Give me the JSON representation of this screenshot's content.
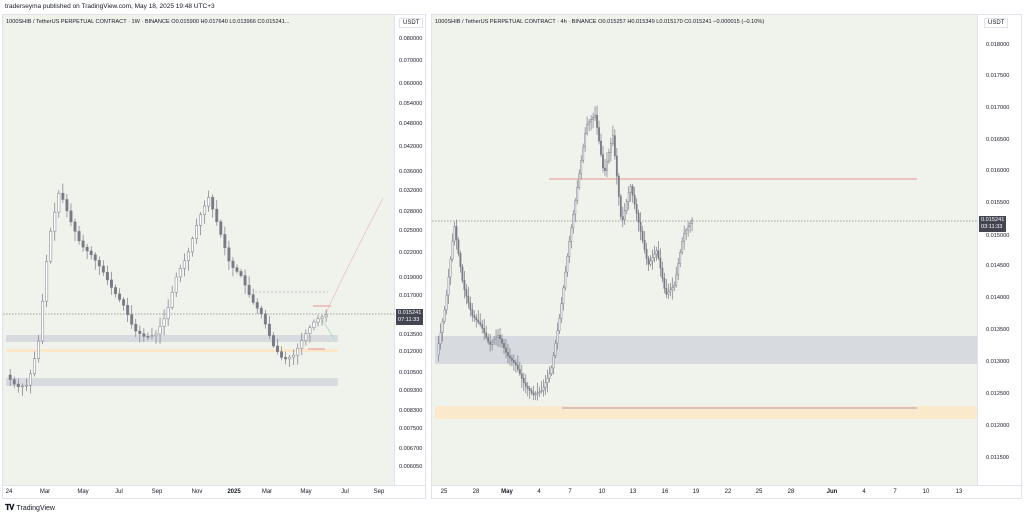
{
  "header": {
    "text": "traderseyma published on TradingView.com, May 18, 2025 19:48 UTC+3"
  },
  "left_chart": {
    "legend": "1000SHIB / TetherUS PERPETUAL CONTRACT · 1W · BINANCE   O0.015900  H0.017640  L0.013966  C0.015241...",
    "unit": "USDT",
    "y_ticks": [
      "0.080000",
      "0.070000",
      "0.060000",
      "0.054000",
      "0.048000",
      "0.042000",
      "0.036000",
      "0.032000",
      "0.028000",
      "0.025000",
      "0.022000",
      "0.019000",
      "0.017000",
      "0.015241",
      "0.013500",
      "0.012000",
      "0.010500",
      "0.009300",
      "0.008300",
      "0.007500",
      "0.006700",
      "0.006050"
    ],
    "price_label": "0.015241",
    "countdown": "07:11:33",
    "x_ticks": [
      "24",
      "Mar",
      "May",
      "Jul",
      "Sep",
      "Nov",
      "2025",
      "Mar",
      "May",
      "Jul",
      "Sep"
    ],
    "bold_ticks": [
      "2025"
    ]
  },
  "right_chart": {
    "legend": "1000SHIB / TetherUS PERPETUAL CONTRACT · 4h · BINANCE   O0.015257  H0.015349  L0.015170  C0.015241  −0.000015 (−0.10%)",
    "unit": "USDT",
    "y_ticks": [
      "0.018000",
      "0.017500",
      "0.017000",
      "0.016500",
      "0.016000",
      "0.015500",
      "0.015000",
      "0.014500",
      "0.014000",
      "0.013500",
      "0.013000",
      "0.012500",
      "0.012000",
      "0.011500"
    ],
    "price_label": "0.015241",
    "countdown": "03:11:33",
    "x_ticks": [
      "25",
      "28",
      "May",
      "4",
      "7",
      "10",
      "13",
      "16",
      "19",
      "22",
      "25",
      "28",
      "Jun",
      "4",
      "7",
      "10",
      "13"
    ],
    "bold_ticks": [
      "May",
      "Jun"
    ]
  },
  "footer": {
    "brand": "TradingView",
    "logo": "tradingview-logo"
  },
  "colors": {
    "plot_bg": "#f0f3ec",
    "candle": "#787b86",
    "red_line": "#e57373",
    "zone_gray": "#d1d4dc",
    "zone_orange": "#fce8c8"
  }
}
